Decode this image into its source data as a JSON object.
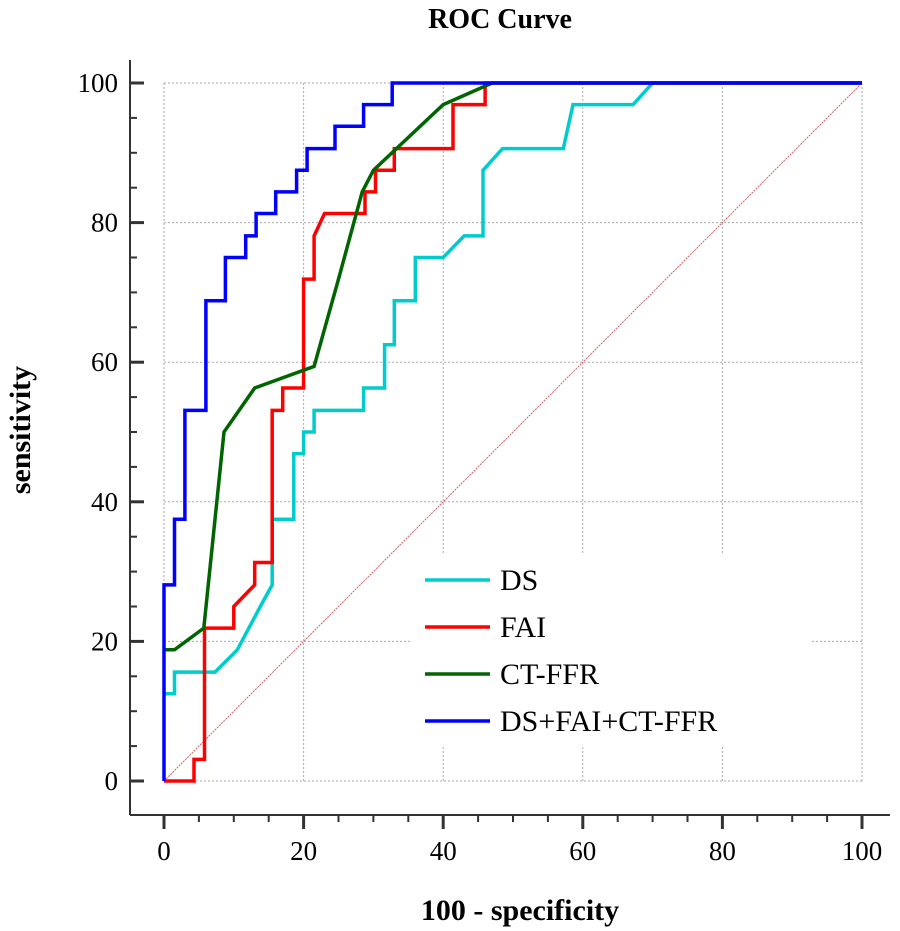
{
  "chart_data": {
    "type": "line",
    "title": "ROC Curve",
    "xlabel": "100 - specificity",
    "ylabel": "sensitivity",
    "xlim": [
      0,
      100
    ],
    "ylim": [
      0,
      100
    ],
    "xticks": [
      "0",
      "20",
      "40",
      "60",
      "80",
      "100"
    ],
    "yticks": [
      "0",
      "20",
      "40",
      "60",
      "80",
      "100"
    ],
    "grid": true,
    "legend_position": "bottom-right",
    "reference_line": {
      "name": "chance",
      "color": "#d06060",
      "points": [
        [
          0,
          0
        ],
        [
          100,
          100
        ]
      ]
    },
    "series": [
      {
        "name": "DS",
        "color": "#00cccc",
        "points": [
          [
            0,
            12.5
          ],
          [
            1.5,
            12.5
          ],
          [
            1.5,
            15.6
          ],
          [
            7.3,
            15.6
          ],
          [
            10.5,
            18.8
          ],
          [
            13.8,
            25
          ],
          [
            15.5,
            28.1
          ],
          [
            15.5,
            37.5
          ],
          [
            18.6,
            37.5
          ],
          [
            18.6,
            46.9
          ],
          [
            20,
            46.9
          ],
          [
            20,
            50
          ],
          [
            21.5,
            50
          ],
          [
            21.5,
            53.1
          ],
          [
            28.6,
            53.1
          ],
          [
            28.6,
            56.3
          ],
          [
            31.6,
            56.3
          ],
          [
            31.6,
            62.5
          ],
          [
            33,
            62.5
          ],
          [
            33,
            68.8
          ],
          [
            36,
            68.8
          ],
          [
            36,
            75
          ],
          [
            40,
            75
          ],
          [
            43,
            78.1
          ],
          [
            45.7,
            78.1
          ],
          [
            45.7,
            87.5
          ],
          [
            48.5,
            90.6
          ],
          [
            57.2,
            90.6
          ],
          [
            58.6,
            96.9
          ],
          [
            67.2,
            96.9
          ],
          [
            70,
            100
          ],
          [
            100,
            100
          ]
        ]
      },
      {
        "name": "FAI",
        "color": "#ff0000",
        "points": [
          [
            0,
            0
          ],
          [
            4.3,
            0
          ],
          [
            4.3,
            3.1
          ],
          [
            5.8,
            3.1
          ],
          [
            5.8,
            21.9
          ],
          [
            10,
            21.9
          ],
          [
            10,
            25
          ],
          [
            13,
            28.1
          ],
          [
            13,
            31.3
          ],
          [
            15.5,
            31.3
          ],
          [
            15.5,
            53.1
          ],
          [
            17,
            53.1
          ],
          [
            17,
            56.3
          ],
          [
            20,
            56.3
          ],
          [
            20,
            71.9
          ],
          [
            21.5,
            71.9
          ],
          [
            21.5,
            78.1
          ],
          [
            23,
            81.3
          ],
          [
            28.8,
            81.3
          ],
          [
            28.8,
            84.4
          ],
          [
            30.3,
            84.4
          ],
          [
            30.3,
            87.5
          ],
          [
            33,
            87.5
          ],
          [
            33,
            90.6
          ],
          [
            41.4,
            90.6
          ],
          [
            41.4,
            96.9
          ],
          [
            46,
            96.9
          ],
          [
            46,
            100
          ],
          [
            100,
            100
          ]
        ]
      },
      {
        "name": "CT-FFR",
        "color": "#006400",
        "points": [
          [
            0,
            18.8
          ],
          [
            1.5,
            18.8
          ],
          [
            5.7,
            21.9
          ],
          [
            8.6,
            50
          ],
          [
            13,
            56.3
          ],
          [
            21.5,
            59.4
          ],
          [
            25,
            71.9
          ],
          [
            28.4,
            84.4
          ],
          [
            30,
            87.5
          ],
          [
            40,
            96.9
          ],
          [
            47,
            100
          ],
          [
            100,
            100
          ]
        ]
      },
      {
        "name": "DS+FAI+CT-FFR",
        "color": "#0000ff",
        "points": [
          [
            0,
            0
          ],
          [
            0,
            28.1
          ],
          [
            1.5,
            28.1
          ],
          [
            1.5,
            37.5
          ],
          [
            3,
            37.5
          ],
          [
            3,
            53.1
          ],
          [
            6,
            53.1
          ],
          [
            6,
            68.8
          ],
          [
            8.8,
            68.8
          ],
          [
            8.8,
            75
          ],
          [
            11.7,
            75
          ],
          [
            11.7,
            78.1
          ],
          [
            13.2,
            78.1
          ],
          [
            13.2,
            81.3
          ],
          [
            16,
            81.3
          ],
          [
            16,
            84.4
          ],
          [
            19,
            84.4
          ],
          [
            19,
            87.5
          ],
          [
            20.5,
            87.5
          ],
          [
            20.5,
            90.6
          ],
          [
            24.5,
            90.6
          ],
          [
            24.5,
            93.8
          ],
          [
            28.6,
            93.8
          ],
          [
            28.6,
            96.9
          ],
          [
            32.7,
            96.9
          ],
          [
            32.7,
            100
          ],
          [
            100,
            100
          ]
        ]
      }
    ]
  }
}
